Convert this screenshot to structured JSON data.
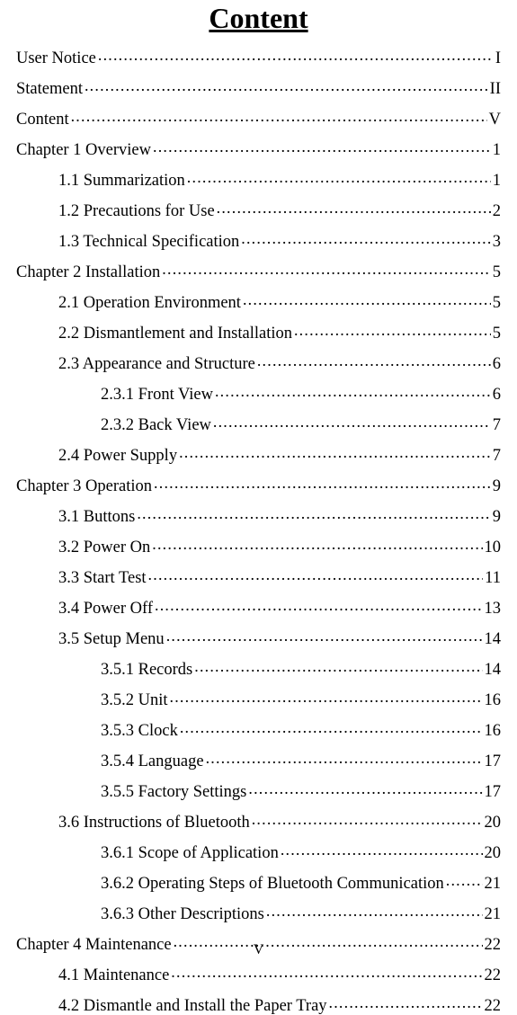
{
  "title": "Content",
  "pageFooter": "V",
  "entries": [
    {
      "label": "User Notice",
      "page": "I",
      "indent": 0
    },
    {
      "label": "Statement",
      "page": "II",
      "indent": 0
    },
    {
      "label": "Content",
      "page": "V",
      "indent": 0
    },
    {
      "label": "Chapter 1 Overview",
      "page": "1",
      "indent": 0
    },
    {
      "label": "1.1 Summarization",
      "page": "1",
      "indent": 1
    },
    {
      "label": "1.2 Precautions for Use",
      "page": "2",
      "indent": 1
    },
    {
      "label": "1.3 Technical Specification",
      "page": "3",
      "indent": 1
    },
    {
      "label": "Chapter 2 Installation",
      "page": "5",
      "indent": 0
    },
    {
      "label": "2.1 Operation Environment",
      "page": "5",
      "indent": 1
    },
    {
      "label": "2.2 Dismantlement and Installation",
      "page": "5",
      "indent": 1
    },
    {
      "label": "2.3 Appearance and Structure",
      "page": "6",
      "indent": 1
    },
    {
      "label": "2.3.1 Front View",
      "page": "6",
      "indent": 2
    },
    {
      "label": "2.3.2 Back View",
      "page": "7",
      "indent": 2
    },
    {
      "label": "2.4 Power Supply",
      "page": "7",
      "indent": 1
    },
    {
      "label": "Chapter 3 Operation",
      "page": "9",
      "indent": 0
    },
    {
      "label": "3.1 Buttons",
      "page": "9",
      "indent": 1
    },
    {
      "label": "3.2 Power On",
      "page": "10",
      "indent": 1
    },
    {
      "label": "3.3 Start Test",
      "page": "11",
      "indent": 1
    },
    {
      "label": "3.4 Power Off",
      "page": "13",
      "indent": 1
    },
    {
      "label": "3.5 Setup Menu",
      "page": "14",
      "indent": 1
    },
    {
      "label": "3.5.1 Records",
      "page": "14",
      "indent": 2
    },
    {
      "label": "3.5.2 Unit",
      "page": "16",
      "indent": 2
    },
    {
      "label": "3.5.3 Clock",
      "page": "16",
      "indent": 2
    },
    {
      "label": "3.5.4 Language",
      "page": "17",
      "indent": 2
    },
    {
      "label": "3.5.5 Factory Settings",
      "page": "17",
      "indent": 2
    },
    {
      "label": "3.6 Instructions of Bluetooth",
      "page": "20",
      "indent": 1
    },
    {
      "label": "3.6.1 Scope of Application",
      "page": "20",
      "indent": 2
    },
    {
      "label": "3.6.2 Operating Steps of Bluetooth Communication",
      "page": "21",
      "indent": 2
    },
    {
      "label": "3.6.3 Other Descriptions",
      "page": "21",
      "indent": 2
    },
    {
      "label": "Chapter 4 Maintenance",
      "page": "22",
      "indent": 0
    },
    {
      "label": "4.1 Maintenance",
      "page": "22",
      "indent": 1
    },
    {
      "label": "4.2 Dismantle and Install the Paper Tray",
      "page": "22",
      "indent": 1
    }
  ]
}
